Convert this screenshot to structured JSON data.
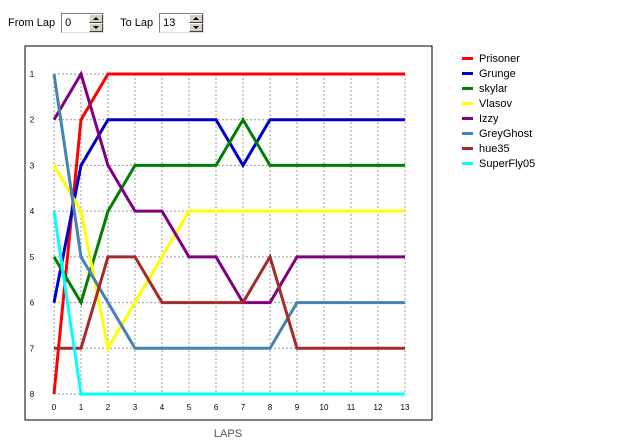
{
  "controls": {
    "from_label": "From Lap",
    "from_value": "0",
    "to_label": "To Lap",
    "to_value": "13"
  },
  "chart_data": {
    "type": "line",
    "xlabel": "LAPS",
    "ylabel": "",
    "x_ticks": [
      "0",
      "1",
      "2",
      "3",
      "4",
      "5",
      "6",
      "7",
      "8",
      "9",
      "10",
      "11",
      "12",
      "13"
    ],
    "y_ticks": [
      "1",
      "2",
      "3",
      "4",
      "5",
      "6",
      "7",
      "8"
    ],
    "xlim": [
      0,
      13
    ],
    "ylim": [
      1,
      8
    ],
    "y_inverted": true,
    "grid": true,
    "legend_position": "right",
    "x": [
      0,
      1,
      2,
      3,
      4,
      5,
      6,
      7,
      8,
      9,
      10,
      11,
      12,
      13
    ],
    "series": [
      {
        "name": "Prisoner",
        "color": "#ff0000",
        "values": [
          8,
          2,
          1,
          1,
          1,
          1,
          1,
          1,
          1,
          1,
          1,
          1,
          1,
          1
        ]
      },
      {
        "name": "Grunge",
        "color": "#0000cc",
        "values": [
          6,
          3,
          2,
          2,
          2,
          2,
          2,
          3,
          2,
          2,
          2,
          2,
          2,
          2
        ]
      },
      {
        "name": "skylar",
        "color": "#008000",
        "values": [
          5,
          6,
          4,
          3,
          3,
          3,
          3,
          2,
          3,
          3,
          3,
          3,
          3,
          3
        ]
      },
      {
        "name": "Vlasov",
        "color": "#ffff00",
        "values": [
          3,
          4,
          7,
          6,
          5,
          4,
          4,
          4,
          4,
          4,
          4,
          4,
          4,
          4
        ]
      },
      {
        "name": "Izzy",
        "color": "#800080",
        "values": [
          2,
          1,
          3,
          4,
          4,
          5,
          5,
          6,
          6,
          5,
          5,
          5,
          5,
          5
        ]
      },
      {
        "name": "GreyGhost",
        "color": "#4682b4",
        "values": [
          1,
          5,
          6,
          7,
          7,
          7,
          7,
          7,
          7,
          6,
          6,
          6,
          6,
          6
        ]
      },
      {
        "name": "hue35",
        "color": "#a52a2a",
        "values": [
          7,
          7,
          5,
          5,
          6,
          6,
          6,
          6,
          5,
          7,
          7,
          7,
          7,
          7
        ]
      },
      {
        "name": "SuperFly05",
        "color": "#00ffff",
        "values": [
          4,
          8,
          8,
          8,
          8,
          8,
          8,
          8,
          8,
          8,
          8,
          8,
          8,
          8
        ]
      }
    ]
  }
}
